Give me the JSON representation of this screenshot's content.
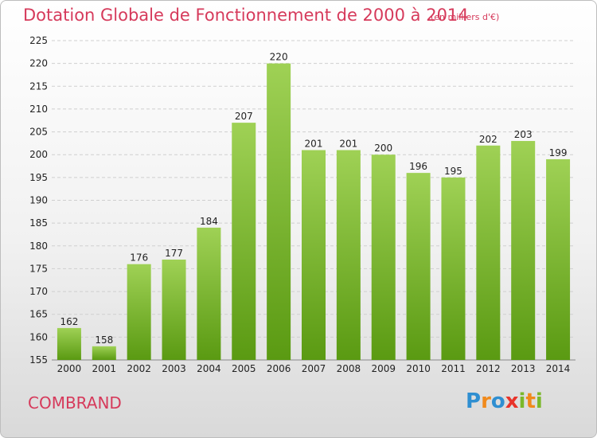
{
  "title": "Dotation Globale de Fonctionnement de 2000 à 2014",
  "subtitle": "(en milliers d'€)",
  "commune": "COMBRAND",
  "brand": {
    "text": "Proxiti",
    "letters": [
      {
        "char": "P",
        "color": "#2f8fd1"
      },
      {
        "char": "r",
        "color": "#f08a1c"
      },
      {
        "char": "o",
        "color": "#2f8fd1"
      },
      {
        "char": "x",
        "color": "#e8332a"
      },
      {
        "char": "i",
        "color": "#7ab82a"
      },
      {
        "char": "t",
        "color": "#f08a1c"
      },
      {
        "char": "i",
        "color": "#7ab82a"
      }
    ]
  },
  "colors": {
    "title": "#d63a5b",
    "bar_top": "#9fd155",
    "bar_bottom": "#5a9a12",
    "grid": "#cfcfcf"
  },
  "chart_data": {
    "type": "bar",
    "title": "Dotation Globale de Fonctionnement de 2000 à 2014",
    "subtitle": "(en milliers d'€)",
    "categories": [
      "2000",
      "2001",
      "2002",
      "2003",
      "2004",
      "2005",
      "2006",
      "2007",
      "2008",
      "2009",
      "2010",
      "2011",
      "2012",
      "2013",
      "2014"
    ],
    "values": [
      162,
      158,
      176,
      177,
      184,
      207,
      220,
      201,
      201,
      200,
      196,
      195,
      202,
      203,
      199
    ],
    "ylim": [
      155,
      225
    ],
    "yticks": [
      155,
      160,
      165,
      170,
      175,
      180,
      185,
      190,
      195,
      200,
      205,
      210,
      215,
      220,
      225
    ],
    "grid": true,
    "data_labels": true,
    "legend": "none"
  }
}
